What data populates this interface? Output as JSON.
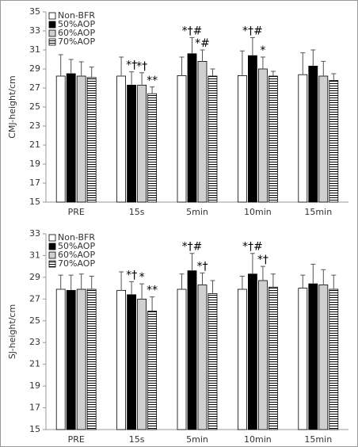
{
  "chart_data": [
    {
      "type": "bar",
      "ylabel": "CMJ-height/cm",
      "categories": [
        "PRE",
        "15s",
        "5min",
        "10min",
        "15min"
      ],
      "ylim": [
        15,
        35
      ],
      "yticks": [
        15,
        17,
        19,
        21,
        23,
        25,
        27,
        29,
        31,
        33,
        35
      ],
      "legend": "upper left",
      "series": [
        {
          "name": "Non-BFR",
          "color": "#ffffff",
          "values": [
            28.25,
            28.25,
            28.3,
            28.3,
            28.4
          ],
          "errors": [
            2.25,
            2.0,
            1.95,
            2.6,
            2.3
          ],
          "annotations": [
            null,
            null,
            null,
            null,
            null
          ]
        },
        {
          "name": "50%AOP",
          "color": "#000000",
          "values": [
            28.5,
            27.3,
            30.6,
            30.4,
            29.3
          ],
          "errors": [
            1.5,
            1.4,
            1.7,
            1.9,
            1.7
          ],
          "annotations": [
            null,
            "*†",
            "*†#",
            "*†#",
            null
          ]
        },
        {
          "name": "60%AOP",
          "color": "#d0d0d0",
          "values": [
            28.25,
            27.3,
            29.8,
            29.0,
            28.25
          ],
          "errors": [
            1.5,
            1.3,
            1.2,
            1.25,
            1.55
          ],
          "annotations": [
            null,
            "*†",
            "*#",
            "*",
            null
          ]
        },
        {
          "name": "70%AOP",
          "color": "#ffffff",
          "pattern": "horizontal-lines",
          "values": [
            28.1,
            26.4,
            28.25,
            28.25,
            27.8
          ],
          "errors": [
            1.1,
            0.7,
            0.75,
            0.5,
            0.7
          ],
          "annotations": [
            null,
            "**",
            null,
            null,
            null
          ]
        }
      ]
    },
    {
      "type": "bar",
      "ylabel": "SJ-height/cm",
      "categories": [
        "PRE",
        "15s",
        "5min",
        "10min",
        "15min"
      ],
      "ylim": [
        15,
        33
      ],
      "yticks": [
        15,
        17,
        19,
        21,
        23,
        25,
        27,
        29,
        31,
        33
      ],
      "legend": "upper left",
      "series": [
        {
          "name": "Non-BFR",
          "color": "#ffffff",
          "values": [
            27.9,
            27.8,
            27.9,
            27.9,
            28.0
          ],
          "errors": [
            1.3,
            1.7,
            1.4,
            1.2,
            1.2
          ],
          "annotations": [
            null,
            null,
            null,
            null,
            null
          ]
        },
        {
          "name": "50%AOP",
          "color": "#000000",
          "values": [
            27.8,
            27.4,
            29.6,
            29.3,
            28.4
          ],
          "errors": [
            1.4,
            1.2,
            1.6,
            1.9,
            1.8
          ],
          "annotations": [
            null,
            "*†",
            "*†#",
            "*†#",
            null
          ]
        },
        {
          "name": "60%AOP",
          "color": "#d0d0d0",
          "values": [
            27.9,
            27.0,
            28.3,
            28.7,
            28.3
          ],
          "errors": [
            1.4,
            1.4,
            1.1,
            1.3,
            1.4
          ],
          "annotations": [
            null,
            "*",
            "*†",
            "*†",
            null
          ]
        },
        {
          "name": "70%AOP",
          "color": "#ffffff",
          "pattern": "horizontal-lines",
          "values": [
            27.9,
            25.9,
            27.5,
            28.1,
            27.9
          ],
          "errors": [
            1.2,
            1.3,
            1.2,
            1.2,
            1.3
          ],
          "annotations": [
            null,
            "**",
            null,
            null,
            null
          ]
        }
      ]
    }
  ]
}
